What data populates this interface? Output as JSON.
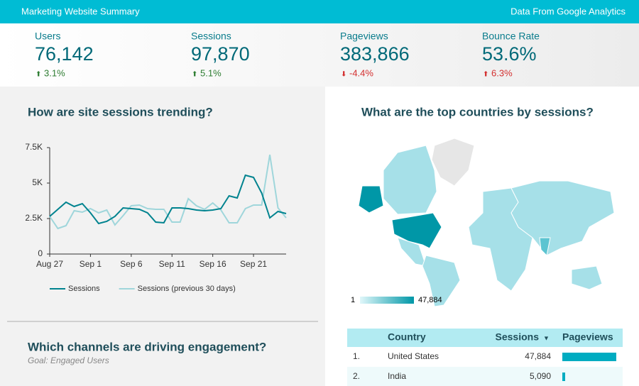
{
  "header": {
    "title": "Marketing Website Summary",
    "source": "Data From Google Analytics"
  },
  "kpis": [
    {
      "label": "Users",
      "value": "76,142",
      "change": "3.1%",
      "trend": "up",
      "color": "#2e7d32"
    },
    {
      "label": "Sessions",
      "value": "97,870",
      "change": "5.1%",
      "trend": "up",
      "color": "#2e7d32"
    },
    {
      "label": "Pageviews",
      "value": "383,866",
      "change": "-4.4%",
      "trend": "down",
      "color": "#d32f2f"
    },
    {
      "label": "Bounce Rate",
      "value": "53.6%",
      "change": "6.3%",
      "trend": "up",
      "color": "#d32f2f"
    }
  ],
  "chart_data": {
    "type": "line",
    "title": "How are site sessions trending?",
    "categories": [
      "Aug 27",
      null,
      null,
      null,
      null,
      "Sep 1",
      null,
      null,
      null,
      null,
      "Sep 6",
      null,
      null,
      null,
      null,
      "Sep 11",
      null,
      null,
      null,
      null,
      "Sep 16",
      null,
      null,
      null,
      null,
      "Sep 21",
      null,
      null,
      null,
      null
    ],
    "series": [
      {
        "name": "Sessions",
        "color": "#00838f",
        "values": [
          2650,
          3150,
          3650,
          3350,
          3550,
          2900,
          2150,
          2300,
          2650,
          3250,
          3200,
          3150,
          2900,
          2250,
          2200,
          3250,
          3250,
          3200,
          3100,
          3050,
          3100,
          3200,
          4100,
          3950,
          5550,
          5400,
          4300,
          2550,
          3000,
          2850
        ]
      },
      {
        "name": "Sessions (previous 30 days)",
        "color": "#9fd6db",
        "values": [
          2650,
          1800,
          2000,
          3050,
          2950,
          3200,
          2900,
          3100,
          2050,
          2700,
          3400,
          3450,
          3200,
          3150,
          3150,
          2250,
          2250,
          3900,
          3400,
          3150,
          3600,
          3100,
          2200,
          2200,
          3200,
          3450,
          3450,
          7000,
          3250,
          2550
        ]
      }
    ],
    "ylim": [
      0,
      7500
    ],
    "yticks": [
      0,
      {
        "value": 2500,
        "label": "2.5K"
      },
      {
        "value": 5000,
        "label": "5K"
      },
      {
        "value": 7500,
        "label": "7.5K"
      }
    ]
  },
  "map": {
    "title": "What are the top countries by sessions?",
    "legend": {
      "min": 1,
      "max": {
        "value": 47884,
        "label": "47,884"
      }
    }
  },
  "table": {
    "columns": [
      "Country",
      "Sessions",
      "Pageviews"
    ],
    "rows": [
      {
        "rank": "1.",
        "country": "United States",
        "sessions": "47,884",
        "pageviews": 190000
      },
      {
        "rank": "2.",
        "country": "India",
        "sessions": "5,090",
        "pageviews": 10000
      }
    ]
  },
  "engagement": {
    "title": "Which channels are driving engagement?",
    "subtitle": "Goal: Engaged Users"
  }
}
